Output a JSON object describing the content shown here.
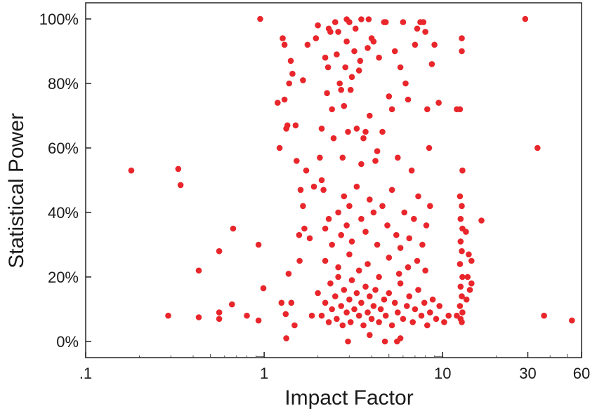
{
  "chart_data": {
    "type": "scatter",
    "xlabel": "Impact Factor",
    "ylabel": "Statistical Power",
    "x_scale": "log",
    "xlim": [
      0.1,
      60
    ],
    "ylim": [
      -0.05,
      1.05
    ],
    "x_ticks": [
      {
        "value": 0.1,
        "label": ".1"
      },
      {
        "value": 1,
        "label": "1"
      },
      {
        "value": 10,
        "label": "10"
      },
      {
        "value": 30,
        "label": "30"
      },
      {
        "value": 60,
        "label": "60"
      }
    ],
    "y_ticks": [
      {
        "value": 0,
        "label": "0%"
      },
      {
        "value": 0.2,
        "label": "20%"
      },
      {
        "value": 0.4,
        "label": "40%"
      },
      {
        "value": 0.6,
        "label": "60%"
      },
      {
        "value": 0.8,
        "label": "80%"
      },
      {
        "value": 1.0,
        "label": "100%"
      }
    ],
    "marker_color": "#e8262b",
    "grid": false,
    "points": [
      [
        0.18,
        0.53
      ],
      [
        0.33,
        0.535
      ],
      [
        0.34,
        0.485
      ],
      [
        0.29,
        0.08
      ],
      [
        0.43,
        0.22
      ],
      [
        0.43,
        0.075
      ],
      [
        0.56,
        0.28
      ],
      [
        0.56,
        0.07
      ],
      [
        0.56,
        0.09
      ],
      [
        0.67,
        0.35
      ],
      [
        0.66,
        0.115
      ],
      [
        0.8,
        0.08
      ],
      [
        0.93,
        0.3
      ],
      [
        0.93,
        0.065
      ],
      [
        0.95,
        1.0
      ],
      [
        0.99,
        0.165
      ],
      [
        1.19,
        0.74
      ],
      [
        1.22,
        0.6
      ],
      [
        1.25,
        0.12
      ],
      [
        1.27,
        0.94
      ],
      [
        1.3,
        0.92
      ],
      [
        1.3,
        0.75
      ],
      [
        1.33,
        0.66
      ],
      [
        1.35,
        0.67
      ],
      [
        1.38,
        0.8
      ],
      [
        1.41,
        0.87
      ],
      [
        1.44,
        0.83
      ],
      [
        1.32,
        0.085
      ],
      [
        1.33,
        0.01
      ],
      [
        1.37,
        0.21
      ],
      [
        1.42,
        0.12
      ],
      [
        1.48,
        0.05
      ],
      [
        1.5,
        0.67
      ],
      [
        1.52,
        0.56
      ],
      [
        1.57,
        0.33
      ],
      [
        1.58,
        0.25
      ],
      [
        1.65,
        0.81
      ],
      [
        1.6,
        0.47
      ],
      [
        1.65,
        0.42
      ],
      [
        1.68,
        0.35
      ],
      [
        1.72,
        0.53
      ],
      [
        1.75,
        0.92
      ],
      [
        1.8,
        0.32
      ],
      [
        1.85,
        0.08
      ],
      [
        1.9,
        0.48
      ],
      [
        1.95,
        0.94
      ],
      [
        2.0,
        0.98
      ],
      [
        2.05,
        0.57
      ],
      [
        2.1,
        0.5
      ],
      [
        2.1,
        0.66
      ],
      [
        2.15,
        0.47
      ],
      [
        2.2,
        0.88
      ],
      [
        2.25,
        0.77
      ],
      [
        2.28,
        0.85
      ],
      [
        2.3,
        0.97
      ],
      [
        2.35,
        0.96
      ],
      [
        2.4,
        0.72
      ],
      [
        2.45,
        0.63
      ],
      [
        2.5,
        0.99
      ],
      [
        2.55,
        0.89
      ],
      [
        2.6,
        0.96
      ],
      [
        2.65,
        0.8
      ],
      [
        2.7,
        0.78
      ],
      [
        2.75,
        0.57
      ],
      [
        2.8,
        0.73
      ],
      [
        2.85,
        0.85
      ],
      [
        2.9,
        0.93
      ],
      [
        2.95,
        0.65
      ],
      [
        3.0,
        0.99
      ],
      [
        3.05,
        0.78
      ],
      [
        3.1,
        0.82
      ],
      [
        3.2,
        0.9
      ],
      [
        3.25,
        0.97
      ],
      [
        3.3,
        0.66
      ],
      [
        3.4,
        0.84
      ],
      [
        3.45,
        0.87
      ],
      [
        3.5,
        0.55
      ],
      [
        3.6,
        0.63
      ],
      [
        3.7,
        0.65
      ],
      [
        3.8,
        0.91
      ],
      [
        3.9,
        0.7
      ],
      [
        4.0,
        0.94
      ],
      [
        4.1,
        0.93
      ],
      [
        4.2,
        0.56
      ],
      [
        4.3,
        0.59
      ],
      [
        4.4,
        0.88
      ],
      [
        4.6,
        0.65
      ],
      [
        4.7,
        0.99
      ],
      [
        4.8,
        0.99
      ],
      [
        5.0,
        0.76
      ],
      [
        5.2,
        0.72
      ],
      [
        5.4,
        0.9
      ],
      [
        5.6,
        0.57
      ],
      [
        5.8,
        0.85
      ],
      [
        6.0,
        0.99
      ],
      [
        6.2,
        0.8
      ],
      [
        6.4,
        0.75
      ],
      [
        6.7,
        0.53
      ],
      [
        7.0,
        0.92
      ],
      [
        7.2,
        0.97
      ],
      [
        7.5,
        0.99
      ],
      [
        7.8,
        0.99
      ],
      [
        8.0,
        0.96
      ],
      [
        8.2,
        0.72
      ],
      [
        8.4,
        0.6
      ],
      [
        8.7,
        0.86
      ],
      [
        9.0,
        0.92
      ],
      [
        9.5,
        0.74
      ],
      [
        3.85,
        0.999
      ],
      [
        2.9,
        0.999
      ],
      [
        3.5,
        0.999
      ],
      [
        2.2,
        0.35
      ],
      [
        2.3,
        0.38
      ],
      [
        2.4,
        0.3
      ],
      [
        2.6,
        0.4
      ],
      [
        2.7,
        0.33
      ],
      [
        2.8,
        0.45
      ],
      [
        2.9,
        0.36
      ],
      [
        3.0,
        0.42
      ],
      [
        3.1,
        0.31
      ],
      [
        3.3,
        0.48
      ],
      [
        3.5,
        0.38
      ],
      [
        3.7,
        0.34
      ],
      [
        3.9,
        0.44
      ],
      [
        4.1,
        0.4
      ],
      [
        4.3,
        0.3
      ],
      [
        4.6,
        0.42
      ],
      [
        4.9,
        0.36
      ],
      [
        5.2,
        0.47
      ],
      [
        5.5,
        0.33
      ],
      [
        5.8,
        0.29
      ],
      [
        6.1,
        0.4
      ],
      [
        6.5,
        0.32
      ],
      [
        6.9,
        0.38
      ],
      [
        7.3,
        0.45
      ],
      [
        7.7,
        0.3
      ],
      [
        8.1,
        0.36
      ],
      [
        8.5,
        0.42
      ],
      [
        2.0,
        0.15
      ],
      [
        2.1,
        0.08
      ],
      [
        2.2,
        0.12
      ],
      [
        2.3,
        0.06
      ],
      [
        2.35,
        0.18
      ],
      [
        2.4,
        0.1
      ],
      [
        2.5,
        0.14
      ],
      [
        2.55,
        0.07
      ],
      [
        2.6,
        0.2
      ],
      [
        2.7,
        0.11
      ],
      [
        2.75,
        0.05
      ],
      [
        2.8,
        0.16
      ],
      [
        2.9,
        0.09
      ],
      [
        3.0,
        0.13
      ],
      [
        3.05,
        0.06
      ],
      [
        3.1,
        0.19
      ],
      [
        3.2,
        0.1
      ],
      [
        3.3,
        0.15
      ],
      [
        3.4,
        0.08
      ],
      [
        3.5,
        0.12
      ],
      [
        3.6,
        0.05
      ],
      [
        3.7,
        0.17
      ],
      [
        3.8,
        0.09
      ],
      [
        3.9,
        0.14
      ],
      [
        4.0,
        0.07
      ],
      [
        4.1,
        0.11
      ],
      [
        4.2,
        0.16
      ],
      [
        4.4,
        0.06
      ],
      [
        4.5,
        0.1
      ],
      [
        4.7,
        0.13
      ],
      [
        4.8,
        0.08
      ],
      [
        5.0,
        0.15
      ],
      [
        5.2,
        0.05
      ],
      [
        5.4,
        0.12
      ],
      [
        5.6,
        0.09
      ],
      [
        5.8,
        0.18
      ],
      [
        6.0,
        0.07
      ],
      [
        6.3,
        0.11
      ],
      [
        6.5,
        0.14
      ],
      [
        6.8,
        0.06
      ],
      [
        7.0,
        0.1
      ],
      [
        7.3,
        0.16
      ],
      [
        7.6,
        0.08
      ],
      [
        7.9,
        0.12
      ],
      [
        8.2,
        0.05
      ],
      [
        8.5,
        0.09
      ],
      [
        8.8,
        0.13
      ],
      [
        9.2,
        0.07
      ],
      [
        9.6,
        0.11
      ],
      [
        10.2,
        0.06
      ],
      [
        10.8,
        0.08
      ],
      [
        2.2,
        0.25
      ],
      [
        2.6,
        0.23
      ],
      [
        3.0,
        0.27
      ],
      [
        3.4,
        0.22
      ],
      [
        3.8,
        0.24
      ],
      [
        4.4,
        0.2
      ],
      [
        5.0,
        0.26
      ],
      [
        5.7,
        0.21
      ],
      [
        6.4,
        0.23
      ],
      [
        7.2,
        0.25
      ],
      [
        8.0,
        0.22
      ],
      [
        2.95,
        0.0
      ],
      [
        4.75,
        0.0
      ],
      [
        5.55,
        0.0
      ],
      [
        5.8,
        0.01
      ],
      [
        3.9,
        0.02
      ],
      [
        12.0,
        0.72
      ],
      [
        12.5,
        0.72
      ],
      [
        12.8,
        0.94
      ],
      [
        12.8,
        0.9
      ],
      [
        12.9,
        0.53
      ],
      [
        12.5,
        0.45
      ],
      [
        12.8,
        0.42
      ],
      [
        12.6,
        0.38
      ],
      [
        12.9,
        0.35
      ],
      [
        12.6,
        0.31
      ],
      [
        12.8,
        0.28
      ],
      [
        12.5,
        0.24
      ],
      [
        12.9,
        0.2
      ],
      [
        12.6,
        0.17
      ],
      [
        12.8,
        0.14
      ],
      [
        12.5,
        0.11
      ],
      [
        12.9,
        0.09
      ],
      [
        12.6,
        0.07
      ],
      [
        12.8,
        0.06
      ],
      [
        12.0,
        0.08
      ],
      [
        13.5,
        0.34
      ],
      [
        14.0,
        0.27
      ],
      [
        14.5,
        0.25
      ],
      [
        13.8,
        0.2
      ],
      [
        14.5,
        0.18
      ],
      [
        13.6,
        0.13
      ],
      [
        14.2,
        0.16
      ],
      [
        16.5,
        0.375
      ],
      [
        29.0,
        1.0
      ],
      [
        34.0,
        0.6
      ],
      [
        37.0,
        0.08
      ],
      [
        53.0,
        0.065
      ]
    ]
  }
}
